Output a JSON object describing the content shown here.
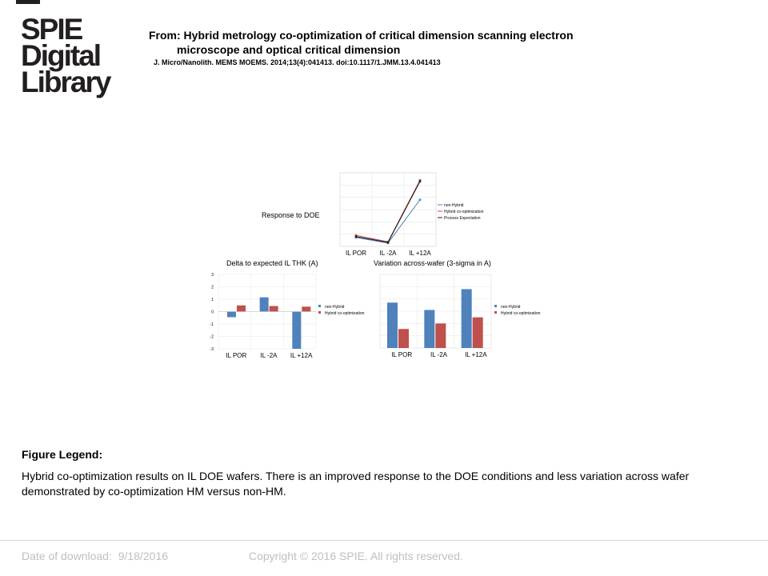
{
  "logo": {
    "line1": "SPIE",
    "line2": "Digital",
    "line3": "Library"
  },
  "title": {
    "line1": "From: Hybrid metrology co-optimization of critical dimension scanning electron",
    "line2": "microscope and optical critical dimension"
  },
  "citation": "J. Micro/Nanolith. MEMS MOEMS. 2014;13(4):041413. doi:10.1117/1.JMM.13.4.041413",
  "figure": {
    "colors": {
      "non_hybrid": "#4f81bd",
      "hybrid": "#c0504d",
      "expectation": "#1f1f1f"
    },
    "chart_data": [
      {
        "type": "line",
        "title": "Response to DOE",
        "categories": [
          "IL POR",
          "IL -2A",
          "IL +12A"
        ],
        "series": [
          {
            "name": "non-Hybrid",
            "values": [
              -0.55,
              -1.45,
              5.6
            ]
          },
          {
            "name": "Hybrid co-optimization",
            "values": [
              -0.2,
              -1.25,
              8.8
            ]
          },
          {
            "name": "Process Expectation",
            "values": [
              -0.4,
              -1.35,
              8.6
            ]
          }
        ],
        "ylim": [
          -2,
          10
        ]
      },
      {
        "type": "bar",
        "title": "Delta to expected  IL THK (A)",
        "categories": [
          "IL POR",
          "IL -2A",
          "IL +12A"
        ],
        "y_ticks": [
          "3",
          "2",
          "1",
          "0",
          "-1",
          "-2",
          "-3"
        ],
        "ylim": [
          -3,
          3
        ],
        "series": [
          {
            "name": "non-Hybrid",
            "values": [
              -0.45,
              1.15,
              -3.0
            ]
          },
          {
            "name": "Hybrid co-optimization",
            "values": [
              0.5,
              0.45,
              0.4
            ]
          }
        ]
      },
      {
        "type": "bar",
        "title": "Variation  across-wafer (3-sigma in A)",
        "categories": [
          "IL POR",
          "IL -2A",
          "IL +12A"
        ],
        "ylim": [
          0,
          6
        ],
        "series": [
          {
            "name": "non-Hybrid",
            "values": [
              3.7,
              3.1,
              4.8
            ]
          },
          {
            "name": "Hybrid co-optimization",
            "values": [
              1.55,
              2.0,
              2.5
            ]
          }
        ]
      }
    ]
  },
  "legend": {
    "heading": "Figure Legend:",
    "text": "Hybrid co-optimization results on IL DOE wafers. There is an improved response to the DOE conditions and less variation across wafer demonstrated by co-optimization HM versus non-HM."
  },
  "footer": {
    "date_label": "Date of download:",
    "date_value": "9/18/2016",
    "copyright": "Copyright © 2016 SPIE. All rights reserved."
  }
}
